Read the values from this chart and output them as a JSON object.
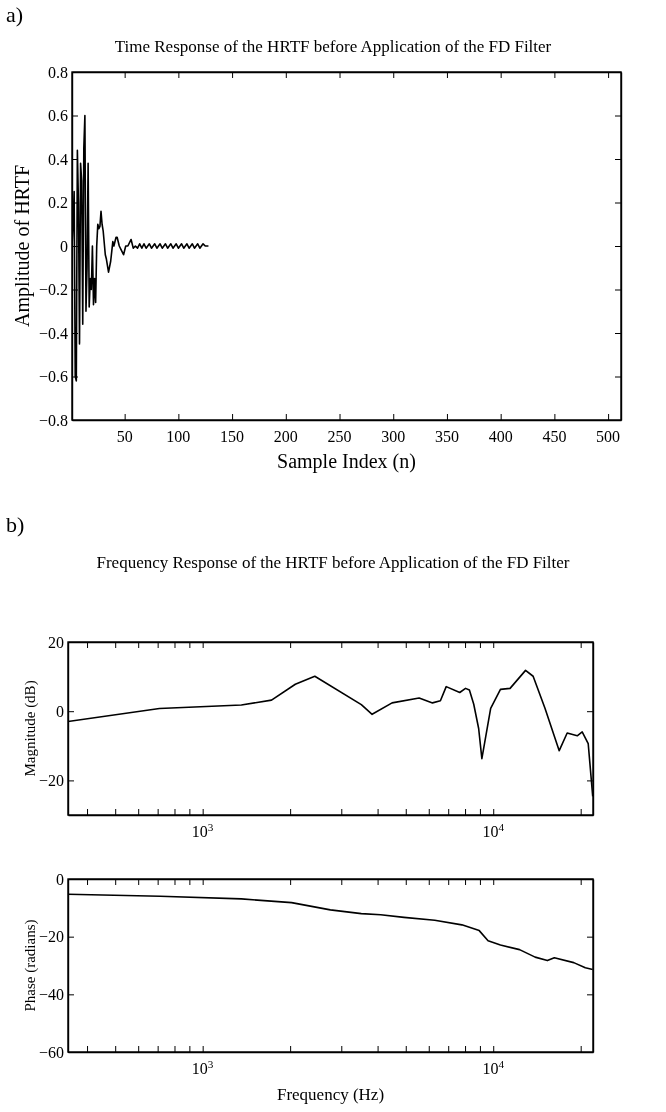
{
  "chart_data": [
    {
      "type": "line",
      "title": "Time Response of the HRTF before Application of the FD Filter",
      "xlabel": "Sample Index (n)",
      "ylabel": "Amplitude of HRTF",
      "annotations": [
        "a)"
      ],
      "x": [
        1,
        2,
        3,
        4,
        5,
        6,
        7,
        8,
        9,
        10,
        11,
        12,
        13,
        14,
        15,
        16,
        17,
        18,
        19,
        20,
        21,
        22,
        23,
        24,
        25,
        26,
        27,
        28,
        29,
        30,
        32,
        33,
        35,
        37,
        39,
        40,
        42,
        43,
        45,
        47,
        49,
        51,
        53,
        56,
        58,
        60,
        62,
        64,
        66,
        68,
        70,
        73,
        75,
        78,
        80,
        83,
        85,
        88,
        90,
        93,
        95,
        98,
        100,
        103,
        105,
        108,
        110,
        113,
        115,
        118,
        120,
        123,
        125,
        128
      ],
      "series": [
        {
          "color": "#000000",
          "values": [
            0,
            0.1,
            0.25,
            -0.6,
            -0.62,
            0.44,
            0.2,
            -0.45,
            0.38,
            0.3,
            -0.36,
            0.45,
            0.6,
            -0.3,
            -0.1,
            0.38,
            -0.28,
            -0.15,
            -0.2,
            0,
            -0.27,
            -0.15,
            -0.26,
            0,
            0.1,
            0.08,
            0.09,
            0.16,
            0.1,
            0.07,
            -0.04,
            -0.06,
            -0.12,
            -0.07,
            0.02,
            0,
            0.04,
            0.04,
            0,
            -0.02,
            -0.04,
            0,
            0,
            0.03,
            -0.01,
            0,
            -0.01,
            0.01,
            -0.01,
            0.01,
            -0.01,
            0.01,
            -0.01,
            0.01,
            -0.01,
            0.01,
            -0.01,
            0.01,
            -0.01,
            0.01,
            -0.01,
            0.01,
            -0.01,
            0.01,
            -0.01,
            0.01,
            -0.01,
            0.01,
            -0.01,
            0.01,
            -0.01,
            0.01,
            0,
            0
          ]
        }
      ],
      "xlim": [
        1,
        512
      ],
      "ylim": [
        -0.8,
        0.8
      ],
      "xticks": [
        50,
        100,
        150,
        200,
        250,
        300,
        350,
        400,
        450,
        500
      ],
      "yticks": [
        -0.8,
        -0.6,
        -0.4,
        -0.2,
        0,
        0.2,
        0.4,
        0.6,
        0.8
      ]
    },
    {
      "type": "line",
      "title": "Frequency Response of the HRTF before Application of the FD Filter",
      "ylabel": "Magnitude (dB)",
      "annotations": [
        "b)"
      ],
      "log": "x",
      "x": [
        344,
        710,
        1359,
        1726,
        2084,
        2432,
        3516,
        3830,
        4487,
        5560,
        6180,
        6580,
        6890,
        7670,
        8030,
        8280,
        8570,
        8910,
        9140,
        9800,
        10590,
        11430,
        12920,
        13720,
        15060,
        16870,
        17970,
        19460,
        20240,
        21230,
        22000
      ],
      "series": [
        {
          "color": "#000000",
          "values": [
            -3,
            0.8,
            1.8,
            3.2,
            7.8,
            10.1,
            1.9,
            -0.9,
            2.4,
            3.8,
            2.4,
            3,
            7.1,
            5.4,
            6.6,
            6.1,
            2,
            -5,
            -13.7,
            0.8,
            6.3,
            6.6,
            11.8,
            10.1,
            0.9,
            -11.4,
            -6.3,
            -7.1,
            -6,
            -9.4,
            -24.6
          ]
        }
      ],
      "xlim": [
        344,
        22050
      ],
      "ylim": [
        -30,
        20
      ],
      "yticks": [
        -20,
        0,
        20
      ],
      "xticks": [
        {
          "value": 400,
          "label": null
        },
        {
          "value": 500,
          "label": null
        },
        {
          "value": 600,
          "label": null
        },
        {
          "value": 700,
          "label": null
        },
        {
          "value": 800,
          "label": null
        },
        {
          "value": 900,
          "label": null
        },
        {
          "value": 1000,
          "label": "10$^{3}$"
        },
        {
          "value": 2000,
          "label": null
        },
        {
          "value": 3000,
          "label": null
        },
        {
          "value": 4000,
          "label": null
        },
        {
          "value": 5000,
          "label": null
        },
        {
          "value": 6000,
          "label": null
        },
        {
          "value": 7000,
          "label": null
        },
        {
          "value": 8000,
          "label": null
        },
        {
          "value": 9000,
          "label": null
        },
        {
          "value": 10000,
          "label": "10$^{4}$"
        },
        {
          "value": 20000,
          "label": null
        }
      ]
    },
    {
      "type": "line",
      "xlabel": "Frequency (Hz)",
      "ylabel": "Phase (radians)",
      "log": "x",
      "x": [
        344,
        714,
        1359,
        2023,
        2751,
        3516,
        4100,
        4930,
        6290,
        7800,
        8950,
        9600,
        10590,
        12320,
        13940,
        15360,
        16230,
        18930,
        20750,
        22000
      ],
      "series": [
        {
          "color": "#000000",
          "values": [
            -5.3,
            -6,
            -6.9,
            -8.2,
            -10.7,
            -12,
            -12.4,
            -13.3,
            -14.3,
            -15.9,
            -17.9,
            -21.4,
            -22.9,
            -24.5,
            -27.1,
            -28.3,
            -27.3,
            -29,
            -30.8,
            -31.4
          ]
        }
      ],
      "xlim": [
        344,
        22050
      ],
      "ylim": [
        -60,
        0
      ],
      "yticks": [
        -60,
        -40,
        -20,
        0
      ],
      "xticks": [
        {
          "value": 400,
          "label": null
        },
        {
          "value": 500,
          "label": null
        },
        {
          "value": 600,
          "label": null
        },
        {
          "value": 700,
          "label": null
        },
        {
          "value": 800,
          "label": null
        },
        {
          "value": 900,
          "label": null
        },
        {
          "value": 1000,
          "label": "10$^{3}$"
        },
        {
          "value": 2000,
          "label": null
        },
        {
          "value": 3000,
          "label": null
        },
        {
          "value": 4000,
          "label": null
        },
        {
          "value": 5000,
          "label": null
        },
        {
          "value": 6000,
          "label": null
        },
        {
          "value": 7000,
          "label": null
        },
        {
          "value": 8000,
          "label": null
        },
        {
          "value": 9000,
          "label": null
        },
        {
          "value": 10000,
          "label": "10$^{4}$"
        },
        {
          "value": 20000,
          "label": null
        }
      ]
    }
  ]
}
